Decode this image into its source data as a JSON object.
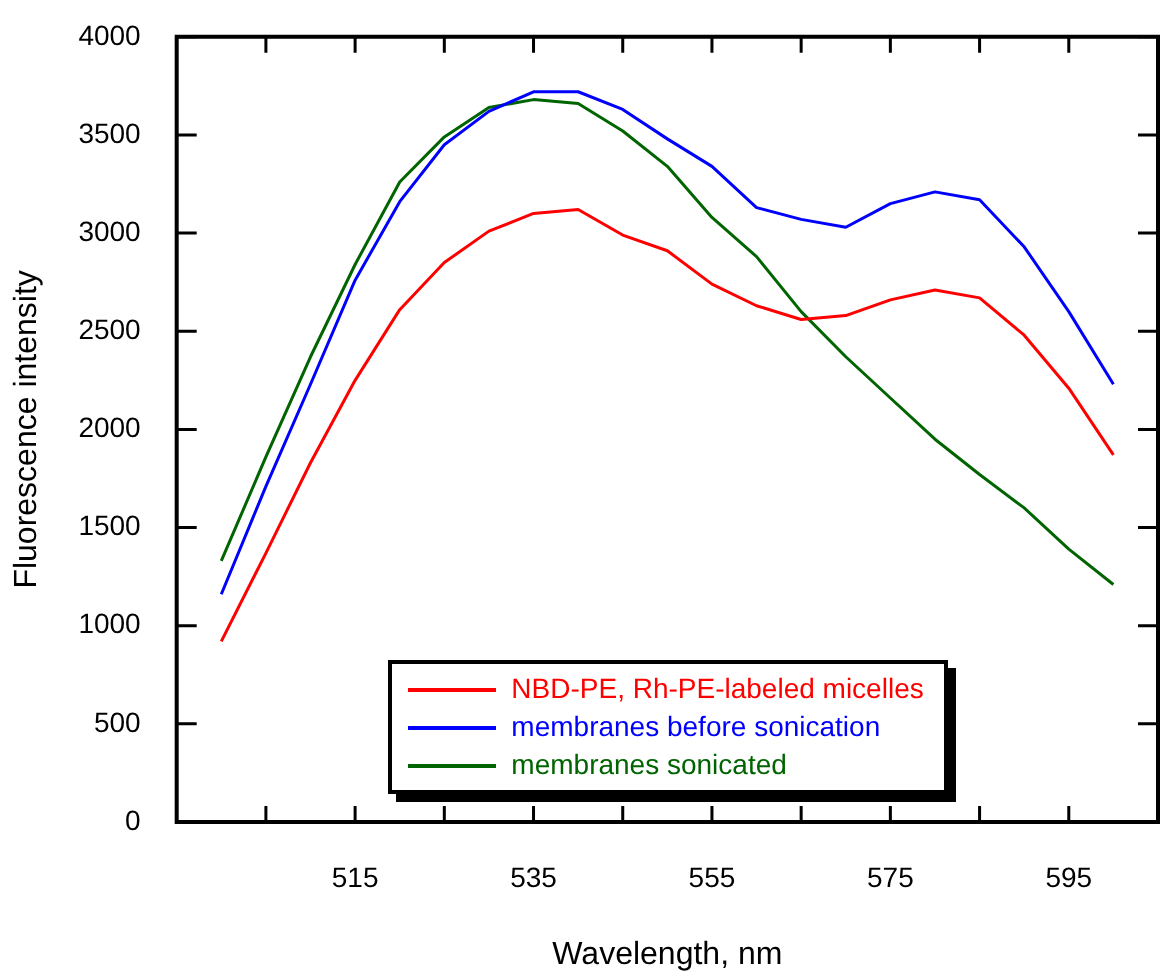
{
  "chart_data": {
    "type": "line",
    "xlabel": "Wavelength, nm",
    "ylabel": "Fluorescence intensity",
    "x": [
      500,
      505,
      510,
      515,
      520,
      525,
      530,
      535,
      540,
      545,
      550,
      555,
      560,
      565,
      570,
      575,
      580,
      585,
      590,
      595,
      600
    ],
    "series": [
      {
        "name": "NBD-PE, Rh-PE-labeled micelles",
        "color": "#ff0000",
        "values": [
          920,
          1370,
          1830,
          2250,
          2610,
          2850,
          3010,
          3100,
          3120,
          2990,
          2910,
          2740,
          2630,
          2560,
          2580,
          2660,
          2710,
          2670,
          2480,
          2210,
          1870
        ]
      },
      {
        "name": "membranes before sonication",
        "color": "#0000ff",
        "values": [
          1160,
          1710,
          2230,
          2760,
          3160,
          3450,
          3620,
          3720,
          3720,
          3630,
          3480,
          3340,
          3130,
          3070,
          3030,
          3150,
          3210,
          3170,
          2930,
          2600,
          2230
        ]
      },
      {
        "name": "membranes sonicated",
        "color": "#006400",
        "values": [
          1330,
          1860,
          2370,
          2840,
          3260,
          3490,
          3640,
          3680,
          3660,
          3520,
          3340,
          3080,
          2880,
          2600,
          2370,
          2160,
          1950,
          1770,
          1600,
          1390,
          1210
        ]
      }
    ],
    "xlim": [
      495,
      605
    ],
    "xticks": [
      {
        "value": 505,
        "label": null
      },
      515,
      {
        "value": 525,
        "label": null
      },
      535,
      {
        "value": 545,
        "label": null
      },
      555,
      {
        "value": 565,
        "label": null
      },
      575,
      {
        "value": 585,
        "label": null
      },
      595
    ],
    "ylim": [
      0,
      4000
    ],
    "yticks": [
      0,
      500,
      1000,
      1500,
      2000,
      2500,
      3000,
      3500,
      4000
    ],
    "grid": false,
    "legend": "bottom",
    "marker": "none",
    "line_style": "solid"
  }
}
